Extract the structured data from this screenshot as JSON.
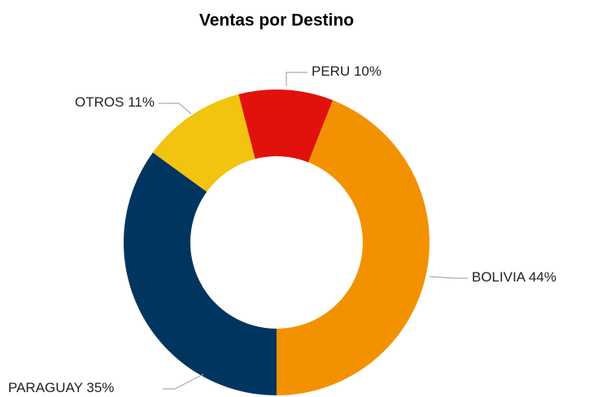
{
  "chart_data": {
    "type": "donut",
    "title": "Ventas por Destino",
    "categories": [
      "PERU",
      "BOLIVIA",
      "PARAGUAY",
      "OTROS"
    ],
    "values": [
      10,
      44,
      35,
      11
    ],
    "value_labels": [
      "10%",
      "44%",
      "35%",
      "11%"
    ],
    "colors": [
      "#e0120b",
      "#f39200",
      "#003560",
      "#f2c40f"
    ]
  }
}
